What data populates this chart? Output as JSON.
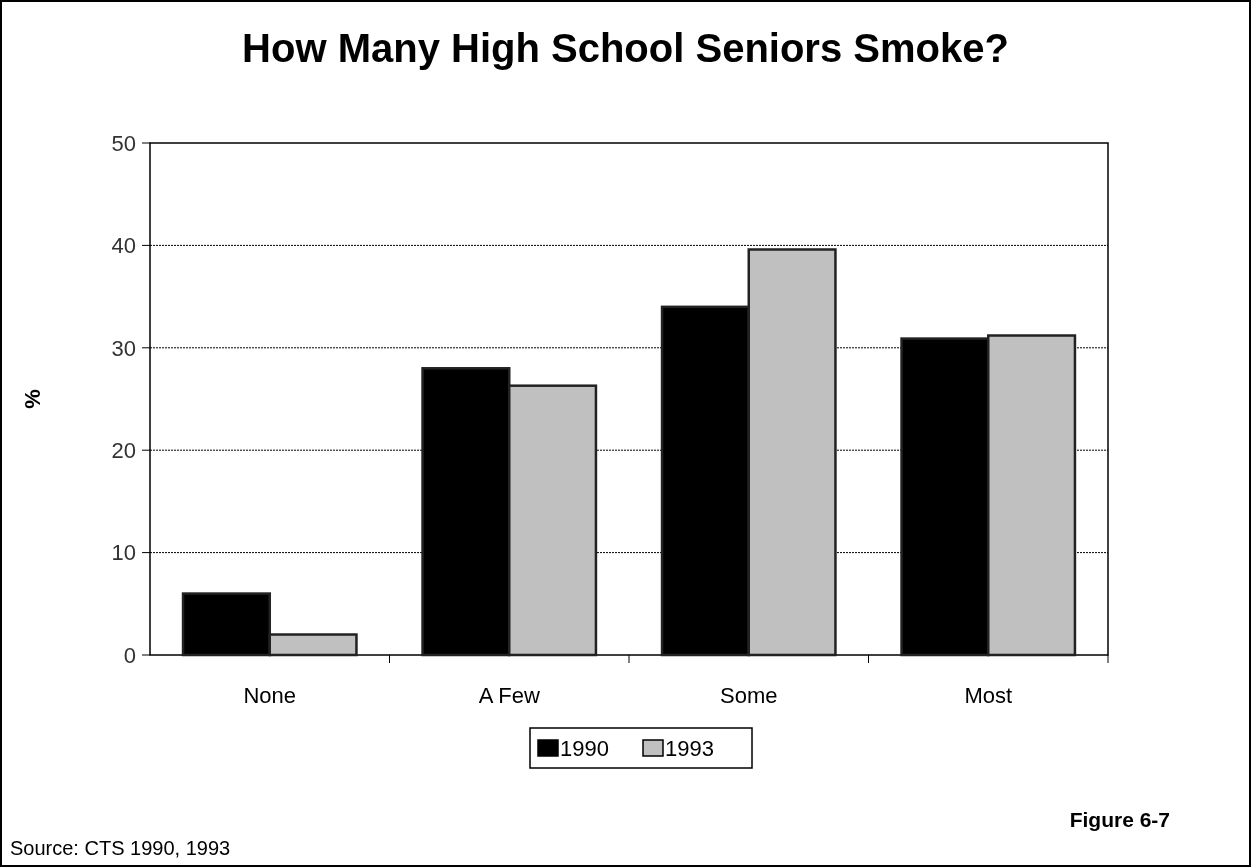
{
  "chart_data": {
    "type": "bar",
    "title": "How Many High School Seniors Smoke?",
    "ylabel": "%",
    "categories": [
      "None",
      "A Few",
      "Some",
      "Most"
    ],
    "series": [
      {
        "name": "1990",
        "color": "#000000",
        "values": [
          6,
          28,
          34,
          30.9
        ]
      },
      {
        "name": "1993",
        "color": "#c0c0c0",
        "values": [
          2,
          26.3,
          39.6,
          31.2
        ]
      }
    ],
    "ylim": [
      0,
      50
    ],
    "yticks": [
      0,
      10,
      20,
      30,
      40,
      50
    ],
    "grid": "y",
    "legend": "bottom",
    "annotations": [
      "Source: CTS 1990, 1993",
      "Figure 6-7"
    ]
  }
}
